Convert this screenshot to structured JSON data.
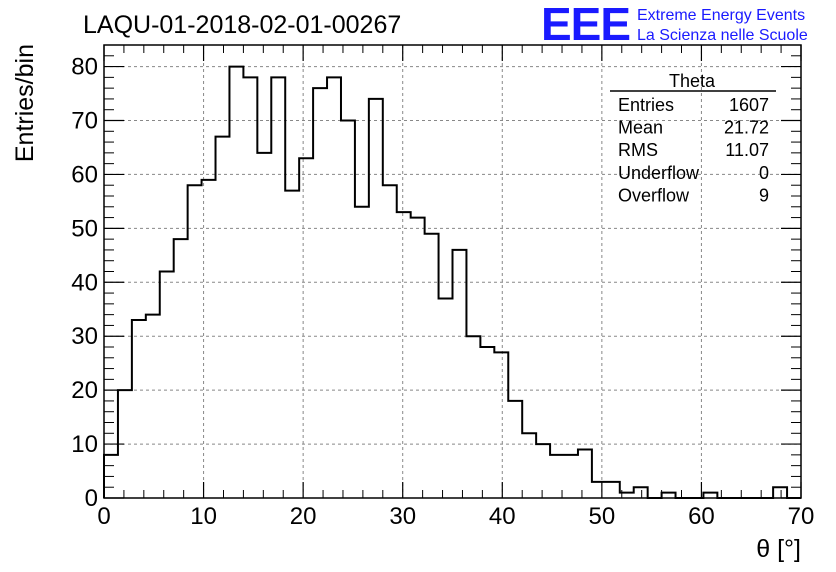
{
  "chart_data": {
    "type": "histogram",
    "title": "LAQU-01-2018-02-01-00267",
    "xlabel": "θ [°]",
    "ylabel": "Entries/bin",
    "xlim": [
      0,
      70
    ],
    "ylim": [
      0,
      84
    ],
    "grid": true,
    "bin_width": 1.4,
    "values": [
      8,
      20,
      33,
      34,
      42,
      48,
      58,
      59,
      67,
      80,
      78,
      64,
      78,
      57,
      63,
      76,
      78,
      70,
      54,
      74,
      58,
      53,
      52,
      49,
      37,
      46,
      30,
      28,
      27,
      18,
      12,
      10,
      8,
      8,
      9,
      3,
      3,
      1,
      2,
      0,
      1,
      0,
      0,
      1,
      0,
      0,
      0,
      0,
      2,
      0
    ],
    "x_ticks": [
      0,
      10,
      20,
      30,
      40,
      50,
      60,
      70
    ],
    "y_ticks": [
      0,
      10,
      20,
      30,
      40,
      50,
      60,
      70,
      80
    ],
    "x_tick_labels": [
      "0",
      "10",
      "20",
      "30",
      "40",
      "50",
      "60",
      "70"
    ],
    "y_tick_labels": [
      "0",
      "10",
      "20",
      "30",
      "40",
      "50",
      "60",
      "70",
      "80"
    ]
  },
  "stats_box": {
    "title": "Theta",
    "rows": [
      {
        "label": "Entries",
        "value": "1607"
      },
      {
        "label": "Mean",
        "value": "21.72"
      },
      {
        "label": "RMS",
        "value": "11.07"
      },
      {
        "label": "Underflow",
        "value": "0"
      },
      {
        "label": "Overflow",
        "value": "9"
      }
    ]
  },
  "logo": {
    "mark": "EEE",
    "line1": "Extreme Energy Events",
    "line2": "La Scienza nelle Scuole",
    "color": "#1a1aff"
  }
}
